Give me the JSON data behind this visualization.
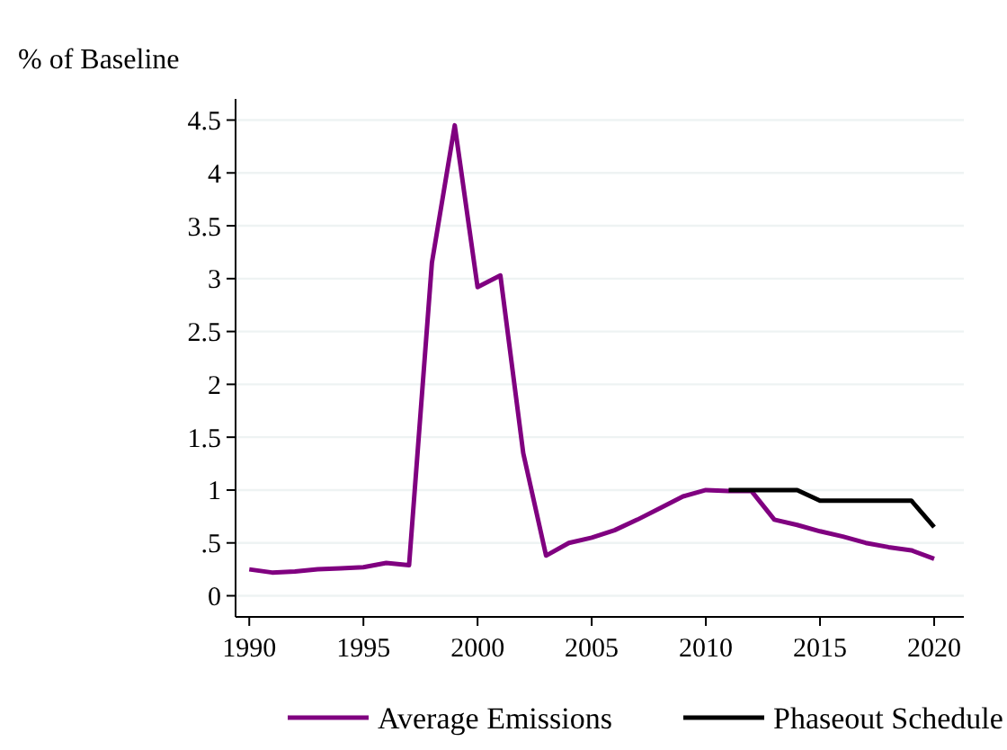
{
  "chart_data": {
    "type": "line",
    "ylabel": "% of Baseline",
    "xlim": [
      1989.4,
      2021.3
    ],
    "xticks": [
      1990,
      1995,
      2000,
      2005,
      2010,
      2015,
      2020
    ],
    "ylim": [
      -0.2,
      4.7
    ],
    "yticks": [
      0,
      {
        "value": 0.5,
        "label": ".5"
      },
      1,
      1.5,
      2,
      2.5,
      3,
      3.5,
      4,
      4.5
    ],
    "grid": "y",
    "legend": "bottom",
    "line_style": "solid",
    "series": [
      {
        "name": "Average Emissions",
        "color": "#800080",
        "x": [
          1990,
          1991,
          1992,
          1993,
          1994,
          1995,
          1996,
          1997,
          1998,
          1999,
          2000,
          2001,
          2002,
          2003,
          2004,
          2005,
          2006,
          2007,
          2008,
          2009,
          2010,
          2011,
          2012,
          2013,
          2014,
          2015,
          2016,
          2017,
          2018,
          2019,
          2020
        ],
        "values": [
          0.25,
          0.22,
          0.23,
          0.25,
          0.26,
          0.27,
          0.31,
          0.29,
          3.15,
          4.45,
          2.92,
          3.03,
          1.35,
          0.38,
          0.5,
          0.55,
          0.62,
          0.72,
          0.83,
          0.94,
          1.0,
          0.99,
          0.99,
          0.72,
          0.67,
          0.61,
          0.56,
          0.5,
          0.46,
          0.43,
          0.35
        ]
      },
      {
        "name": "Phaseout Schedule",
        "color": "#000000",
        "x": [
          2011,
          2012,
          2013,
          2014,
          2015,
          2016,
          2017,
          2018,
          2019,
          2020
        ],
        "values": [
          1,
          1,
          1,
          1,
          0.9,
          0.9,
          0.9,
          0.9,
          0.9,
          0.65
        ]
      }
    ]
  }
}
